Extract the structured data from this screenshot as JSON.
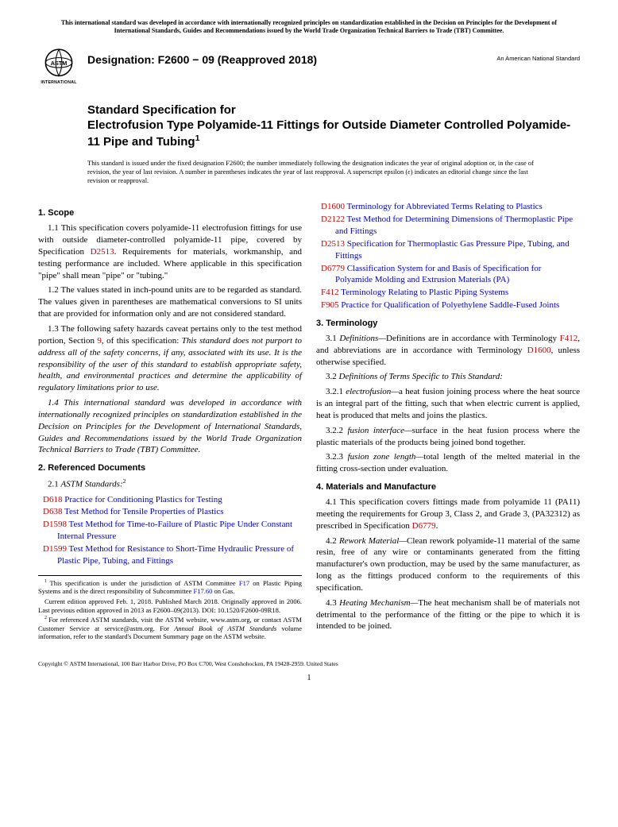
{
  "top_notice": "This international standard was developed in accordance with internationally recognized principles on standardization established in the Decision on Principles for the Development of International Standards, Guides and Recommendations issued by the World Trade Organization Technical Barriers to Trade (TBT) Committee.",
  "logo": {
    "top_text": "ASTM",
    "bottom_text": "INTERNATIONAL"
  },
  "designation": "Designation: F2600 − 09 (Reapproved 2018)",
  "ans_note": "An American National Standard",
  "title_lead": "Standard Specification for",
  "title_main": "Electrofusion Type Polyamide-11 Fittings for Outside Diameter Controlled Polyamide-11 Pipe and Tubing",
  "title_super": "1",
  "issuance_note": "This standard is issued under the fixed designation F2600; the number immediately following the designation indicates the year of original adoption or, in the case of revision, the year of last revision. A number in parentheses indicates the year of last reapproval. A superscript epsilon (ε) indicates an editorial change since the last revision or reapproval.",
  "sections": {
    "scope_head": "1. Scope",
    "s1_1a": "1.1 This specification covers polyamide-11 electrofusion fittings for use with outside diameter-controlled polyamide-11 pipe, covered by Specification ",
    "s1_1_link": "D2513",
    "s1_1b": ". Requirements for materials, workmanship, and testing performance are included. Where applicable in this specification \"pipe\" shall mean \"pipe\" or \"tubing.\"",
    "s1_2": "1.2 The values stated in inch-pound units are to be regarded as standard. The values given in parentheses are mathematical conversions to SI units that are provided for information only and are not considered standard.",
    "s1_3a": "1.3 The following safety hazards caveat pertains only to the test method portion, Section ",
    "s1_3_link": "9",
    "s1_3b": ", of this specification: ",
    "s1_3_italic": "This standard does not purport to address all of the safety concerns, if any, associated with its use. It is the responsibility of the user of this standard to establish appropriate safety, health, and environmental practices and determine the applicability of regulatory limitations prior to use.",
    "s1_4_italic": "1.4 This international standard was developed in accordance with internationally recognized principles on standardization established in the Decision on Principles for the Development of International Standards, Guides and Recommendations issued by the World Trade Organization Technical Barriers to Trade (TBT) Committee.",
    "ref_head": "2. Referenced Documents",
    "ref_lead": "2.1 ",
    "ref_lead_italic": "ASTM Standards:",
    "ref_super": "2",
    "refs": [
      {
        "code": "D618",
        "title": "Practice for Conditioning Plastics for Testing"
      },
      {
        "code": "D638",
        "title": "Test Method for Tensile Properties of Plastics"
      },
      {
        "code": "D1598",
        "title": "Test Method for Time-to-Failure of Plastic Pipe Under Constant Internal Pressure"
      },
      {
        "code": "D1599",
        "title": "Test Method for Resistance to Short-Time Hydraulic Pressure of Plastic Pipe, Tubing, and Fittings"
      },
      {
        "code": "D1600",
        "title": "Terminology for Abbreviated Terms Relating to Plastics"
      },
      {
        "code": "D2122",
        "title": "Test Method for Determining Dimensions of Thermoplastic Pipe and Fittings"
      },
      {
        "code": "D2513",
        "title": "Specification for Thermoplastic Gas Pressure Pipe, Tubing, and Fittings"
      },
      {
        "code": "D6779",
        "title": "Classification System for and Basis of Specification for Polyamide Molding and Extrusion Materials (PA)"
      },
      {
        "code": "F412",
        "title": "Terminology Relating to Plastic Piping Systems"
      },
      {
        "code": "F905",
        "title": "Practice for Qualification of Polyethylene Saddle-Fused Joints"
      }
    ],
    "term_head": "3. Terminology",
    "s3_1a": "3.1 ",
    "s3_1_italic": "Definitions—",
    "s3_1b": "Definitions are in accordance with Terminology ",
    "s3_1_link1": "F412",
    "s3_1c": ", and abbreviations are in accordance with Terminology ",
    "s3_1_link2": "D1600",
    "s3_1d": ", unless otherwise specified.",
    "s3_2": "3.2 ",
    "s3_2_italic": "Definitions of Terms Specific to This Standard:",
    "s3_2_1a": "3.2.1 ",
    "s3_2_1_term": "electrofusion—",
    "s3_2_1b": "a heat fusion joining process where the heat source is an integral part of the fitting, such that when electric current is applied, heat is produced that melts and joins the plastics.",
    "s3_2_2a": "3.2.2 ",
    "s3_2_2_term": "fusion interface—",
    "s3_2_2b": "surface in the heat fusion process where the plastic materials of the products being joined bond together.",
    "s3_2_3a": "3.2.3 ",
    "s3_2_3_term": "fusion zone length—",
    "s3_2_3b": "total length of the melted material in the fitting cross-section under evaluation.",
    "mat_head": "4. Materials and Manufacture",
    "s4_1a": "4.1 This specification covers fittings made from polyamide 11 (PA11) meeting the requirements for Group 3, Class 2, and Grade 3, (PA32312) as prescribed in Specification ",
    "s4_1_link": "D6779",
    "s4_1b": ".",
    "s4_2a": "4.2 ",
    "s4_2_italic": "Rework Material—",
    "s4_2b": "Clean rework polyamide-11 material of the same resin, free of any wire or contaminants generated from the fitting manufacturer's own production, may be used by the same manufacturer, as long as the fittings produced conform to the requirements of this specification.",
    "s4_3a": "4.3 ",
    "s4_3_italic": "Heating Mechanism—",
    "s4_3b": "The heat mechanism shall be of materials not detrimental to the performance of the fitting or the pipe to which it is intended to be joined."
  },
  "footnotes": {
    "f1a": "This specification is under the jurisdiction of ASTM Committee ",
    "f1_link1": "F17",
    "f1b": " on Plastic Piping Systems and is the direct responsibility of Subcommittee ",
    "f1_link2": "F17.60",
    "f1c": " on Gas.",
    "f1d": "Current edition approved Feb. 1, 2018. Published March 2018. Originally approved in 2006. Last previous edition approved in 2013 as F2600–09(2013). DOI: 10.1520/F2600-09R18.",
    "f2a": "For referenced ASTM standards, visit the ASTM website, www.astm.org, or contact ASTM Customer Service at service@astm.org. For ",
    "f2_italic": "Annual Book of ASTM Standards",
    "f2b": " volume information, refer to the standard's Document Summary page on the ASTM website."
  },
  "copyright": "Copyright © ASTM International, 100 Barr Harbor Drive, PO Box C700, West Conshohocken, PA 19428-2959. United States",
  "page_number": "1"
}
